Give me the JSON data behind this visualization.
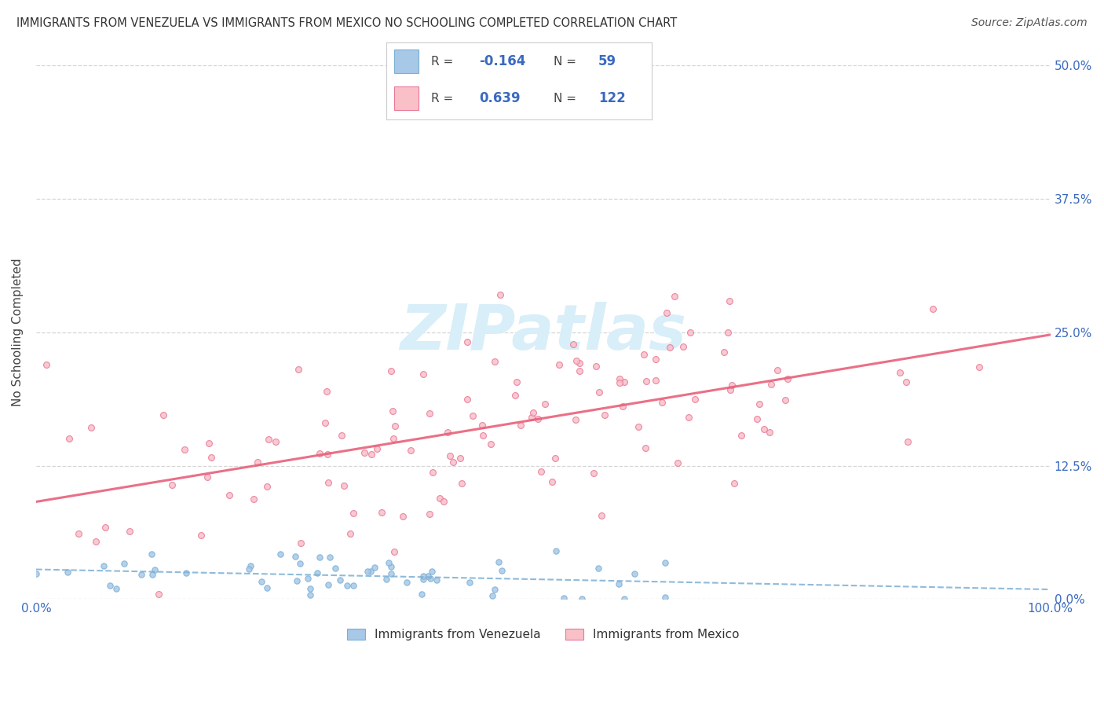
{
  "title": "IMMIGRANTS FROM VENEZUELA VS IMMIGRANTS FROM MEXICO NO SCHOOLING COMPLETED CORRELATION CHART",
  "source": "Source: ZipAtlas.com",
  "ylabel": "No Schooling Completed",
  "xlim": [
    0.0,
    1.0
  ],
  "ylim": [
    0.0,
    0.5
  ],
  "yticks": [
    0.0,
    0.125,
    0.25,
    0.375,
    0.5
  ],
  "ytick_labels": [
    "0.0%",
    "12.5%",
    "25.0%",
    "37.5%",
    "50.0%"
  ],
  "xticks": [
    0.0,
    0.25,
    0.5,
    0.75,
    1.0
  ],
  "xtick_labels": [
    "0.0%",
    "",
    "",
    "",
    "100.0%"
  ],
  "series1_name": "Immigrants from Venezuela",
  "series1_color": "#a8c8e8",
  "series1_edge": "#7aafd4",
  "series1_line": "#7aafd4",
  "series1_R": -0.164,
  "series1_N": 59,
  "series2_name": "Immigrants from Mexico",
  "series2_color": "#f9c0c8",
  "series2_edge": "#e87898",
  "series2_line": "#e8607a",
  "series2_R": 0.639,
  "series2_N": 122,
  "background_color": "#ffffff",
  "tick_color": "#3a6abf",
  "grid_color": "#cccccc",
  "watermark_color": "#d8eef8",
  "legend_box_color": "#e8e8f0"
}
